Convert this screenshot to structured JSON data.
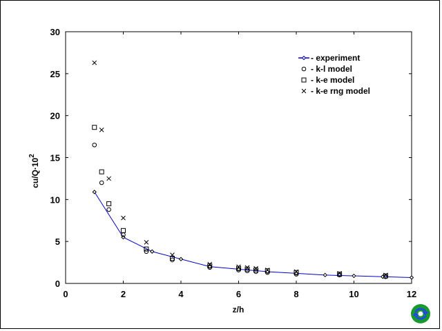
{
  "chart_data": {
    "type": "scatter",
    "xlabel": "z/h",
    "ylabel_main": "cu/Q·10",
    "ylabel_sup": "2",
    "xlim": [
      0,
      12
    ],
    "ylim": [
      0,
      30
    ],
    "x_ticks": [
      0,
      2,
      4,
      6,
      8,
      10,
      12
    ],
    "y_ticks": [
      0,
      5,
      10,
      15,
      20,
      25,
      30
    ],
    "grid": false,
    "legend_position": "top-right",
    "series": [
      {
        "name": "- experiment",
        "marker": "diamond",
        "line": true,
        "color": "#0000cc",
        "points": [
          [
            1,
            10.9
          ],
          [
            2,
            5.5
          ],
          [
            3,
            3.8
          ],
          [
            4,
            2.9
          ],
          [
            5,
            2.0
          ],
          [
            6,
            1.7
          ],
          [
            7,
            1.4
          ],
          [
            8,
            1.2
          ],
          [
            9,
            1.0
          ],
          [
            10,
            0.9
          ],
          [
            11,
            0.8
          ],
          [
            12,
            0.7
          ]
        ]
      },
      {
        "name": "- k-l model",
        "marker": "circle",
        "line": false,
        "color": "#000000",
        "points": [
          [
            1.0,
            16.5
          ],
          [
            1.25,
            12.0
          ],
          [
            1.5,
            8.8
          ],
          [
            2.0,
            5.8
          ],
          [
            2.8,
            3.8
          ],
          [
            3.7,
            2.8
          ],
          [
            5.0,
            1.9
          ],
          [
            6.0,
            1.6
          ],
          [
            6.3,
            1.5
          ],
          [
            6.6,
            1.4
          ],
          [
            7.0,
            1.3
          ],
          [
            8.0,
            1.1
          ],
          [
            9.5,
            1.0
          ],
          [
            11.1,
            0.8
          ]
        ]
      },
      {
        "name": "- k-e model",
        "marker": "square",
        "line": false,
        "color": "#000000",
        "points": [
          [
            1.0,
            18.6
          ],
          [
            1.25,
            13.3
          ],
          [
            1.5,
            9.5
          ],
          [
            2.0,
            6.3
          ],
          [
            2.8,
            4.1
          ],
          [
            3.7,
            3.0
          ],
          [
            5.0,
            2.1
          ],
          [
            6.0,
            1.8
          ],
          [
            6.3,
            1.7
          ],
          [
            6.6,
            1.6
          ],
          [
            7.0,
            1.5
          ],
          [
            8.0,
            1.3
          ],
          [
            9.5,
            1.1
          ],
          [
            11.1,
            0.9
          ]
        ]
      },
      {
        "name": "- k-e rng model",
        "marker": "x",
        "line": false,
        "color": "#000000",
        "points": [
          [
            1.0,
            26.3
          ],
          [
            1.25,
            18.3
          ],
          [
            1.5,
            12.5
          ],
          [
            2.0,
            7.8
          ],
          [
            2.8,
            4.9
          ],
          [
            3.7,
            3.4
          ],
          [
            5.0,
            2.3
          ],
          [
            6.0,
            2.0
          ],
          [
            6.3,
            1.9
          ],
          [
            6.6,
            1.8
          ],
          [
            7.0,
            1.6
          ],
          [
            8.0,
            1.4
          ],
          [
            9.5,
            1.2
          ],
          [
            11.1,
            1.0
          ]
        ]
      }
    ]
  },
  "logo": {
    "icon": "circular-arrows-logo-icon",
    "colors": [
      "#1a9a2a",
      "#1e4fd8",
      "#ffffff"
    ]
  }
}
